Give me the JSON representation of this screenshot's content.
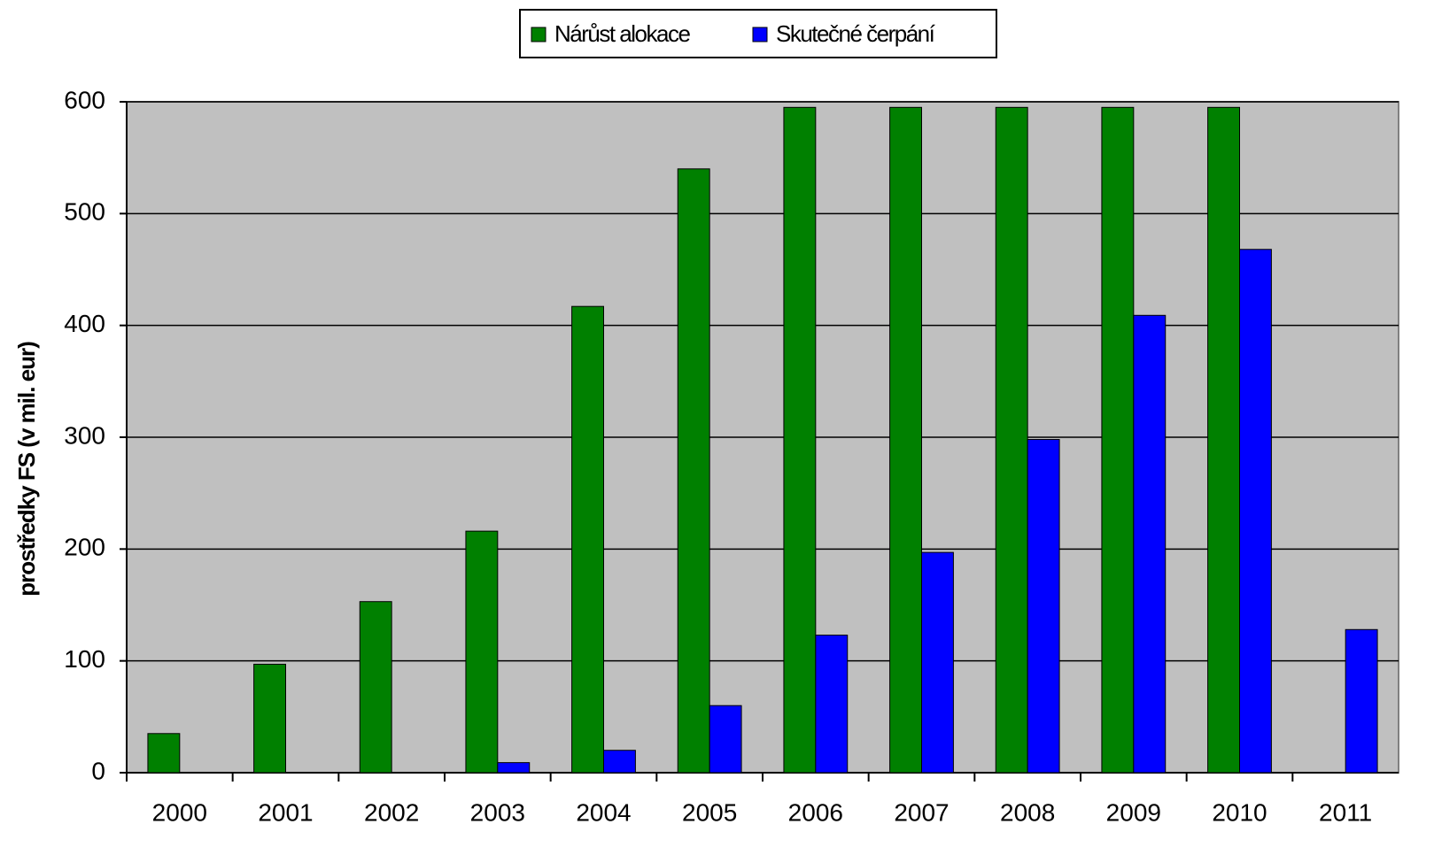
{
  "chart_data": {
    "type": "bar",
    "categories": [
      "2000",
      "2001",
      "2002",
      "2003",
      "2004",
      "2005",
      "2006",
      "2007",
      "2008",
      "2009",
      "2010",
      "2011"
    ],
    "series": [
      {
        "name": "Nárůst alokace",
        "color": "#008000",
        "values": [
          35,
          97,
          153,
          216,
          417,
          540,
          595,
          595,
          595,
          595,
          595,
          null
        ]
      },
      {
        "name": "Skutečné čerpání",
        "color": "#0000ff",
        "values": [
          null,
          null,
          null,
          9,
          20,
          60,
          123,
          197,
          298,
          409,
          468,
          128
        ]
      }
    ],
    "y_label": "prostředky FS (v mil. eur)",
    "ylim": [
      0,
      600
    ],
    "yticks": [
      0,
      100,
      200,
      300,
      400,
      500,
      600
    ],
    "grid": true,
    "legend": "top"
  }
}
